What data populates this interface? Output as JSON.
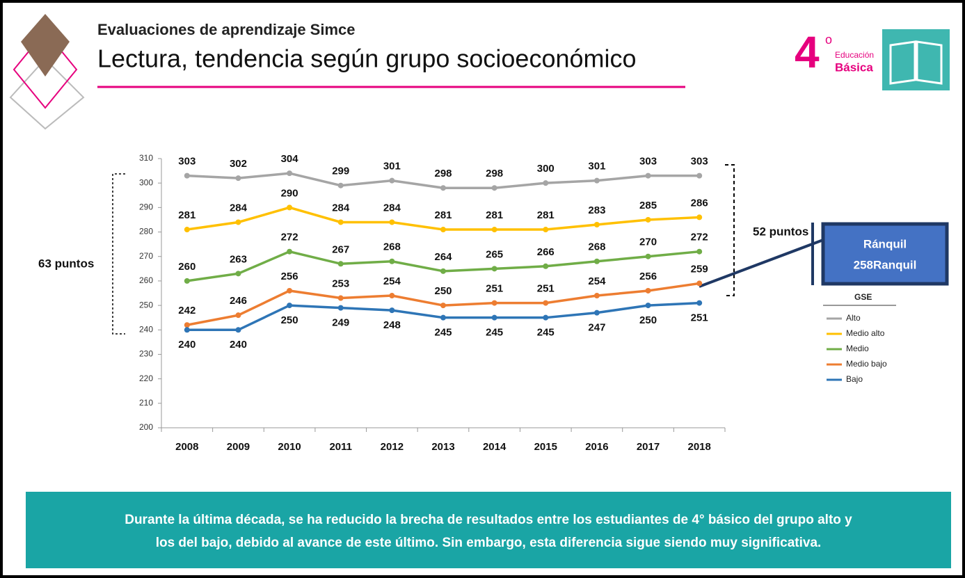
{
  "header": {
    "subtitle": "Evaluaciones de aprendizaje Simce",
    "title": "Lectura, tendencia según grupo socioeconómico"
  },
  "badge": {
    "grade": "4",
    "superscript": "o",
    "line1": "Educación",
    "line2": "Básica"
  },
  "chart_data": {
    "type": "line",
    "categories": [
      "2008",
      "2009",
      "2010",
      "2011",
      "2012",
      "2013",
      "2014",
      "2015",
      "2016",
      "2017",
      "2018"
    ],
    "series": [
      {
        "name": "Alto",
        "color": "#a5a5a5",
        "values": [
          303,
          302,
          304,
          299,
          301,
          298,
          298,
          300,
          301,
          303,
          303
        ]
      },
      {
        "name": "Medio alto",
        "color": "#ffc000",
        "values": [
          281,
          284,
          290,
          284,
          284,
          281,
          281,
          281,
          283,
          285,
          286
        ]
      },
      {
        "name": "Medio",
        "color": "#70ad47",
        "values": [
          260,
          263,
          272,
          267,
          268,
          264,
          265,
          266,
          268,
          270,
          272
        ]
      },
      {
        "name": "Medio bajo",
        "color": "#ed7d31",
        "values": [
          242,
          246,
          256,
          253,
          254,
          250,
          251,
          251,
          254,
          256,
          259
        ]
      },
      {
        "name": "Bajo",
        "color": "#2e75b6",
        "values": [
          240,
          240,
          250,
          249,
          248,
          245,
          245,
          245,
          247,
          250,
          251
        ]
      }
    ],
    "ylim": [
      200,
      310
    ],
    "yticks": [
      200,
      210,
      220,
      230,
      240,
      250,
      260,
      270,
      280,
      290,
      300,
      310
    ],
    "grid": false,
    "legend_title": "GSE",
    "legend": "right",
    "annotations": [
      "63 puntos",
      "52 puntos"
    ],
    "callout": {
      "title": "Ránquil",
      "text": "258Ranquil"
    }
  },
  "footer": {
    "lines": [
      "Durante la última década, se ha reducido la brecha de resultados entre los estudiantes de 4° básico del grupo alto y",
      "los del bajo, debido al avance de este último. Sin embargo, esta diferencia sigue siendo muy significativa."
    ]
  }
}
